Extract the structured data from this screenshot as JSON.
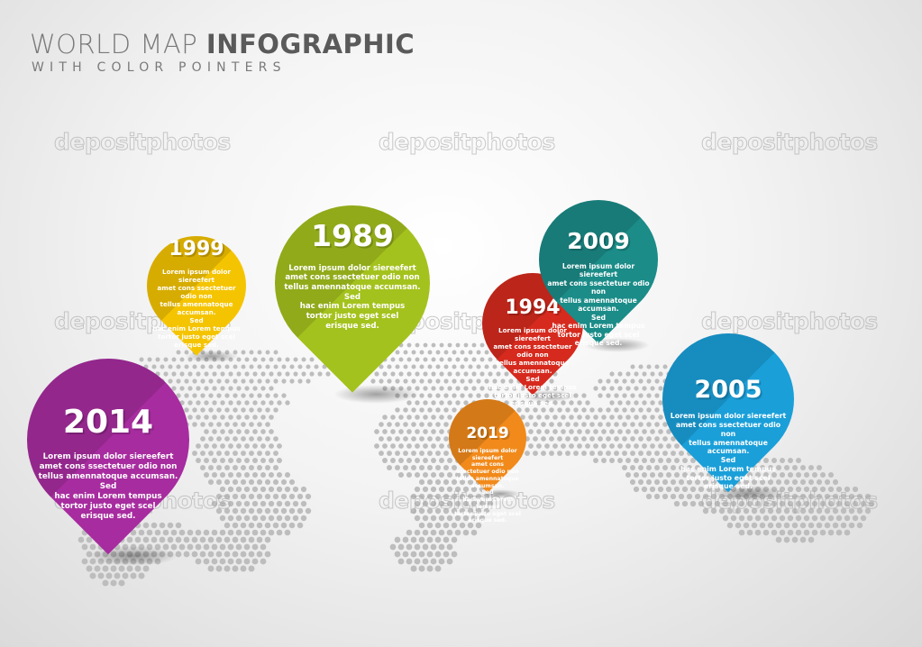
{
  "header": {
    "title_light": "WORLD MAP ",
    "title_bold": "INFOGRAPHIC",
    "subtitle": "WITH COLOR POINTERS"
  },
  "watermark": "depositphotos",
  "pointers": [
    {
      "year": "1999",
      "lines": [
        "Lorem ipsum dolor siereefert",
        "amet cons ssectetuer odio non",
        "tellus amennatoque accumsan.",
        "Sed",
        "hac enim Lorem tempus",
        "tortor justo eget scel",
        "erisque sed."
      ],
      "color": "#f5c400"
    },
    {
      "year": "1989",
      "lines": [
        "Lorem ipsum dolor siereefert",
        "amet cons ssectetuer odio non",
        "tellus amennatoque accumsan.",
        "Sed",
        "hac enim Lorem tempus",
        "tortor justo eget scel",
        "erisque sed."
      ],
      "color": "#a4c21d"
    },
    {
      "year": "2014",
      "lines": [
        "Lorem ipsum dolor siereefert",
        "amet cons ssectetuer odio non",
        "tellus amennatoque accumsan.",
        "Sed",
        "hac enim Lorem tempus",
        "tortor justo eget scel",
        "erisque sed."
      ],
      "color": "#a72c9f"
    },
    {
      "year": "2019",
      "lines": [
        "Lorem ipsum dolor siereefert",
        "amet cons ssectetuer odio non",
        "tellus amennatoque accumsan.",
        "Sed",
        "hac enim Lorem tempus",
        "tortor justo eget scel",
        "erisque sed."
      ],
      "color": "#f18a1b"
    },
    {
      "year": "1994",
      "lines": [
        "Lorem ipsum dolor siereefert",
        "amet cons ssectetuer odio non",
        "tellus amennatoque accumsan.",
        "Sed",
        "hac enim Lorem tempus",
        "tortor justo eget scel",
        "erisque sed."
      ],
      "color": "#d62a1e"
    },
    {
      "year": "2009",
      "lines": [
        "Lorem ipsum dolor siereefert",
        "amet cons ssectetuer odio non",
        "tellus amennatoque accumsan.",
        "Sed",
        "hac enim Lorem tempus",
        "tortor justo eget scel",
        "erisque sed."
      ],
      "color": "#1b8c88"
    },
    {
      "year": "2005",
      "lines": [
        "Lorem ipsum dolor siereefert",
        "amet cons ssectetuer odio non",
        "tellus amennatoque accumsan.",
        "Sed",
        "hac enim Lorem tempus",
        "tortor justo eget scel",
        "erisque sed."
      ],
      "color": "#1a9fd9"
    }
  ]
}
